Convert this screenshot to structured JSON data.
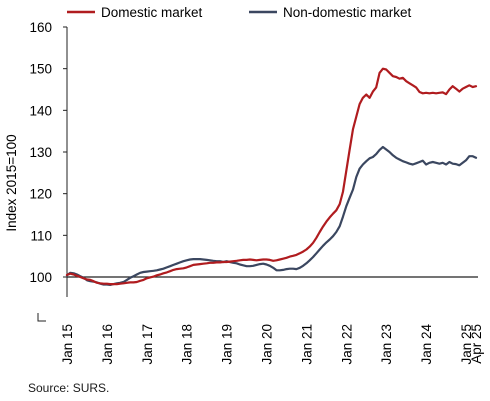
{
  "chart_data": {
    "type": "line",
    "ylabel": "Index 2015=100",
    "ylim": [
      100,
      160
    ],
    "yticks": [
      "100",
      "110",
      "120",
      "130",
      "140",
      "150",
      "160"
    ],
    "yticks_values": [
      100,
      110,
      120,
      130,
      140,
      150,
      160
    ],
    "xticks": [
      "Jan 15",
      "Jan 16",
      "Jan 17",
      "Jan 18",
      "Jan 19",
      "Jan 20",
      "Jan 21",
      "Jan 22",
      "Jan 23",
      "Jan 24",
      "Jan 25",
      "Apr 25"
    ],
    "xticks_month_index": [
      0,
      12,
      24,
      36,
      48,
      60,
      72,
      84,
      96,
      108,
      120,
      123
    ],
    "x_start": "Jan 15",
    "x_end": "Apr 25",
    "reference_line_y": 100,
    "axis_break": true,
    "legend_position": "top",
    "series": [
      {
        "name": "Domestic market",
        "color": "#b01c1f",
        "values": [
          100.5,
          100.8,
          100.6,
          100.3,
          100.0,
          99.7,
          99.4,
          99.3,
          99.0,
          98.6,
          98.5,
          98.4,
          98.4,
          98.3,
          98.3,
          98.3,
          98.4,
          98.5,
          98.6,
          98.7,
          98.7,
          98.8,
          99.1,
          99.3,
          99.7,
          99.9,
          100.1,
          100.4,
          100.6,
          100.9,
          101.1,
          101.4,
          101.7,
          101.9,
          102.0,
          102.1,
          102.3,
          102.6,
          102.9,
          103.0,
          103.1,
          103.2,
          103.3,
          103.4,
          103.4,
          103.5,
          103.5,
          103.6,
          103.6,
          103.7,
          103.8,
          103.9,
          104.0,
          104.1,
          104.1,
          104.2,
          104.1,
          104.0,
          104.1,
          104.2,
          104.2,
          104.1,
          103.9,
          104.0,
          104.2,
          104.4,
          104.6,
          104.9,
          105.1,
          105.3,
          105.7,
          106.1,
          106.6,
          107.3,
          108.2,
          109.4,
          110.8,
          112.1,
          113.3,
          114.3,
          115.2,
          116.0,
          117.5,
          120.5,
          125.5,
          130.5,
          135.5,
          138.5,
          141.5,
          143.0,
          143.8,
          143.0,
          144.5,
          145.5,
          149.0,
          150.0,
          149.8,
          149.0,
          148.2,
          148.0,
          147.6,
          147.8,
          147.0,
          146.5,
          146.0,
          145.5,
          144.4,
          144.1,
          144.2,
          144.1,
          144.2,
          144.1,
          144.2,
          144.3,
          143.9,
          145.0,
          145.8,
          145.2,
          144.5,
          145.2,
          145.6,
          146.0,
          145.6,
          145.8
        ]
      },
      {
        "name": "Non-domestic market",
        "color": "#3b4760",
        "values": [
          100.4,
          101.0,
          100.9,
          100.6,
          100.2,
          99.8,
          99.2,
          99.0,
          98.9,
          98.7,
          98.4,
          98.2,
          98.2,
          98.1,
          98.3,
          98.5,
          98.6,
          98.8,
          99.3,
          99.8,
          100.2,
          100.6,
          101.0,
          101.2,
          101.3,
          101.4,
          101.5,
          101.6,
          101.8,
          102.0,
          102.3,
          102.6,
          102.9,
          103.2,
          103.5,
          103.8,
          104.0,
          104.2,
          104.3,
          104.3,
          104.3,
          104.2,
          104.1,
          104.0,
          103.9,
          103.8,
          103.8,
          103.6,
          103.8,
          103.6,
          103.4,
          103.3,
          103.0,
          102.8,
          102.6,
          102.6,
          102.7,
          102.9,
          103.1,
          103.2,
          103.0,
          102.7,
          102.2,
          101.6,
          101.6,
          101.7,
          101.9,
          102.0,
          102.0,
          101.9,
          102.2,
          102.7,
          103.3,
          104.0,
          104.8,
          105.7,
          106.6,
          107.5,
          108.3,
          109.0,
          109.8,
          110.8,
          112.2,
          114.5,
          117.0,
          119.0,
          121.0,
          124.0,
          126.0,
          127.0,
          127.8,
          128.5,
          128.8,
          129.5,
          130.5,
          131.2,
          130.6,
          130.0,
          129.2,
          128.6,
          128.2,
          127.8,
          127.5,
          127.2,
          127.0,
          127.3,
          127.6,
          127.9,
          127.0,
          127.4,
          127.6,
          127.4,
          127.2,
          127.4,
          127.0,
          127.6,
          127.2,
          127.1,
          126.8,
          127.4,
          128.0,
          129.0,
          129.0,
          128.6
        ]
      }
    ],
    "source_note": "Source: SURS."
  }
}
